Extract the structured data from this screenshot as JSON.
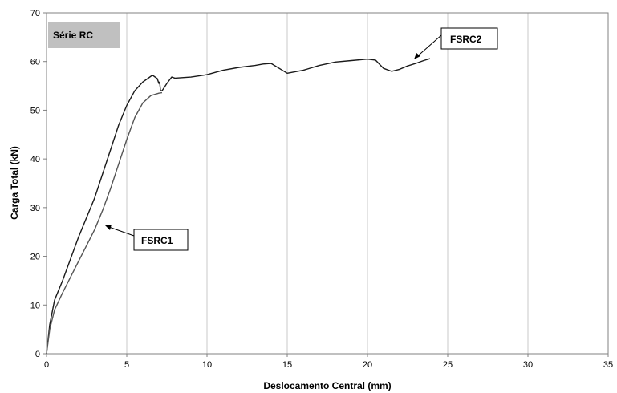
{
  "chart_data": {
    "type": "line",
    "title": "",
    "series_label": "Série RC",
    "xlabel": "Deslocamento Central (mm)",
    "ylabel": "Carga Total (kN)",
    "xlim": [
      0,
      35
    ],
    "ylim": [
      0,
      70
    ],
    "xticks": [
      0,
      5,
      10,
      15,
      20,
      25,
      30,
      35
    ],
    "yticks": [
      0,
      10,
      20,
      30,
      40,
      50,
      60,
      70
    ],
    "grid": "vertical",
    "series_colors": [
      "#1a1a1a",
      "#555555"
    ],
    "series": [
      {
        "name": "FSRC2",
        "x": [
          0,
          0.2,
          0.5,
          1,
          2,
          3,
          3.5,
          4,
          4.5,
          5,
          5.5,
          6,
          6.3,
          6.6,
          6.9,
          7.0,
          7.05,
          7.1,
          7.2,
          7.3,
          7.5,
          7.8,
          8,
          9,
          10,
          11,
          12,
          13,
          13.5,
          14,
          14.5,
          15,
          16,
          17,
          18,
          19,
          20,
          20.5,
          21,
          21.5,
          22,
          22.5,
          23,
          23.5,
          23.9
        ],
        "y": [
          0,
          6,
          11,
          15,
          24,
          32,
          37,
          42,
          47,
          51,
          54,
          55.8,
          56.5,
          57.2,
          56.5,
          55.5,
          55.8,
          54,
          54,
          54.5,
          55.5,
          56.8,
          56.6,
          56.8,
          57.3,
          58.2,
          58.8,
          59.2,
          59.5,
          59.6,
          58.6,
          57.6,
          58.2,
          59.2,
          59.9,
          60.2,
          60.5,
          60.3,
          58.6,
          58,
          58.4,
          59.1,
          59.6,
          60.2,
          60.6
        ]
      },
      {
        "name": "FSRC1",
        "x": [
          0,
          0.2,
          0.5,
          1,
          2,
          3,
          3.5,
          4,
          4.5,
          5,
          5.5,
          6,
          6.5,
          7.0,
          7.2
        ],
        "y": [
          0,
          5,
          9,
          12.5,
          19,
          25.5,
          29.5,
          34,
          39,
          44,
          48.5,
          51.5,
          53,
          53.5,
          53.6
        ]
      }
    ]
  }
}
